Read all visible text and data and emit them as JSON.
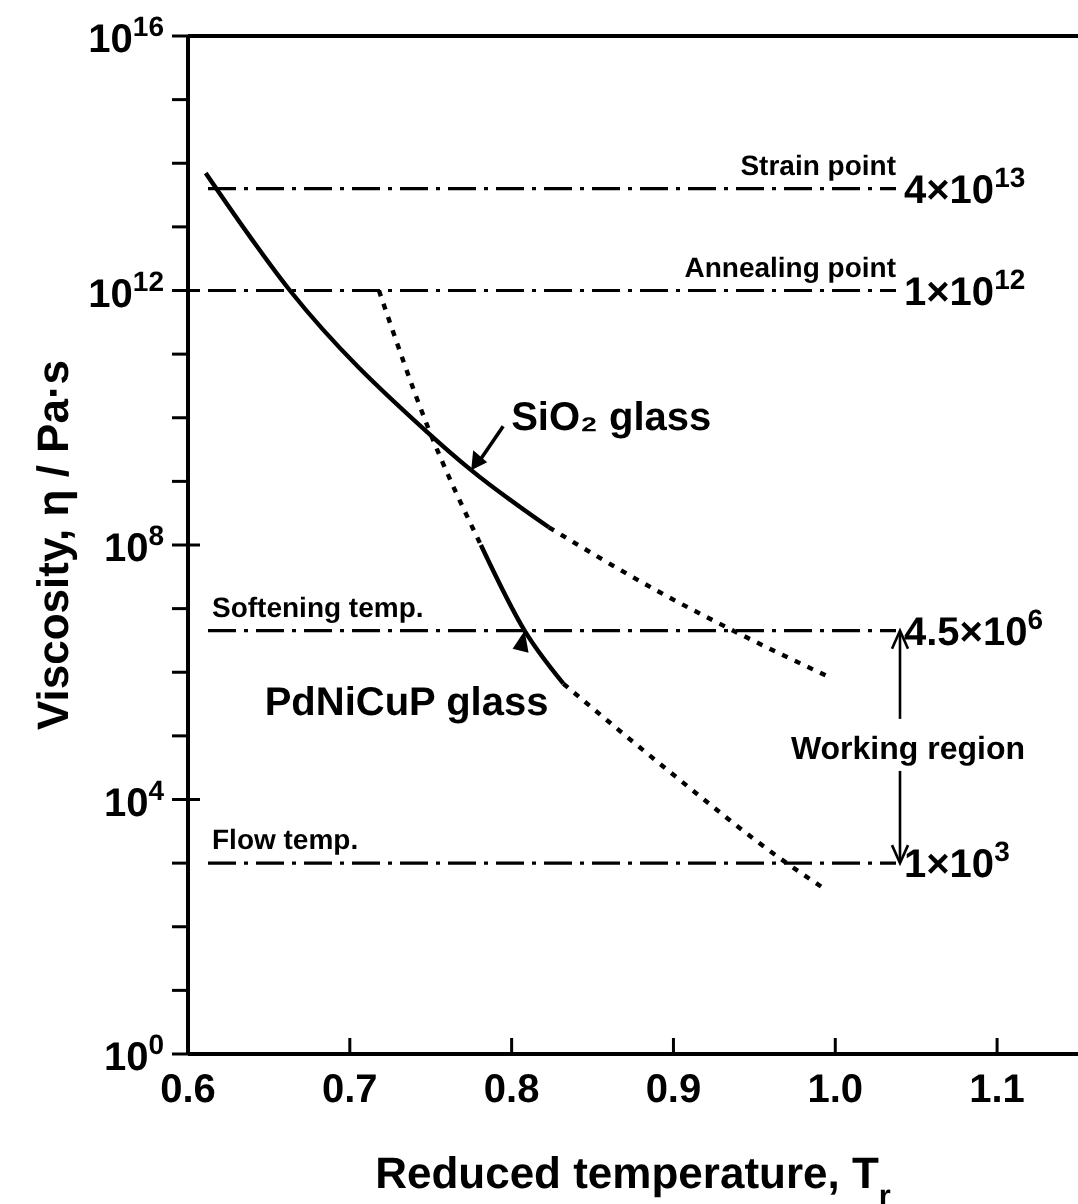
{
  "chart_data": {
    "type": "line",
    "xlabel": "Reduced temperature, T$_{r}$",
    "ylabel": "Viscosity, η / Pa·s",
    "log": "y",
    "xlim": [
      0.6,
      1.15
    ],
    "xticks": [
      {
        "value": 0.6,
        "label": "0.6"
      },
      {
        "value": 0.7,
        "label": "0.7"
      },
      {
        "value": 0.8,
        "label": "0.8"
      },
      {
        "value": 0.9,
        "label": "0.9"
      },
      {
        "value": 1.0,
        "label": "1.0"
      },
      {
        "value": 1.1,
        "label": "1.1"
      }
    ],
    "ylim": [
      1,
      1e+16
    ],
    "yticks": [
      {
        "value": 1,
        "label": "10$^{0}$"
      },
      {
        "value": 10,
        "label": null
      },
      {
        "value": 100,
        "label": null
      },
      {
        "value": 1000,
        "label": null
      },
      {
        "value": 10000.0,
        "label": "10$^{4}$"
      },
      {
        "value": 100000.0,
        "label": null
      },
      {
        "value": 1000000.0,
        "label": null
      },
      {
        "value": 10000000.0,
        "label": null
      },
      {
        "value": 100000000.0,
        "label": "10$^{8}$"
      },
      {
        "value": 1000000000.0,
        "label": null
      },
      {
        "value": 10000000000.0,
        "label": null
      },
      {
        "value": 100000000000.0,
        "label": null
      },
      {
        "value": 1000000000000.0,
        "label": "10$^{12}$"
      },
      {
        "value": 10000000000000.0,
        "label": null
      },
      {
        "value": 100000000000000.0,
        "label": null
      },
      {
        "value": 1000000000000000.0,
        "label": null
      },
      {
        "value": 1e+16,
        "label": "10$^{16}$"
      }
    ],
    "grid": false,
    "marker": "none",
    "series": [
      {
        "color": "#000000",
        "line_style": "solid",
        "x": [
          0.611,
          0.663,
          0.748,
          0.775,
          0.823
        ],
        "values": [
          70000000000000.0,
          1000000000000.0,
          5900000000.0,
          1500000000.0,
          190000000.0
        ]
      },
      {
        "color": "#000000",
        "line_style": "dotted",
        "x": [
          0.823,
          0.89,
          0.937,
          0.998
        ],
        "values": [
          190000000.0,
          19000000.0,
          4500000.0,
          800000.0
        ]
      },
      {
        "color": "#000000",
        "line_style": "dotted",
        "x": [
          0.718,
          0.748,
          0.781
        ],
        "values": [
          1000000000000.0,
          7400000000.0,
          100000000.0
        ]
      },
      {
        "color": "#000000",
        "line_style": "solid",
        "x": [
          0.781,
          0.808,
          0.832
        ],
        "values": [
          100000000.0,
          4500000.0,
          660000.0
        ]
      },
      {
        "color": "#000000",
        "line_style": "dotted",
        "x": [
          0.832,
          0.895,
          0.97,
          0.993
        ],
        "values": [
          660000.0,
          31000.0,
          1000.0,
          400.0
        ]
      }
    ],
    "ref_lines": [
      {
        "axis": "y",
        "value": 40000000000000.0,
        "label": "Strain point",
        "line_style": "dashed"
      },
      {
        "axis": "y",
        "value": 1000000000000.0,
        "label": "Annealing point",
        "line_style": "dashed"
      },
      {
        "axis": "y",
        "value": 4500000.0,
        "label": "Softening temp.",
        "line_style": "dashed"
      },
      {
        "axis": "y",
        "value": 1000.0,
        "label": "Flow temp.",
        "line_style": "dashed"
      }
    ],
    "annotations": [
      {
        "text": "4×10$^{13}$",
        "x": 1.04,
        "y": 40000000000000.0
      },
      {
        "text": "1×10$^{12}$",
        "x": 1.04,
        "y": 1000000000000.0
      },
      {
        "text": "4.5×10$^{6}$",
        "x": 1.04,
        "y": 4500000.0
      },
      {
        "text": "1×10$^{3}$",
        "x": 1.04,
        "y": 1000.0
      },
      {
        "text": "SiO₂ glass",
        "x": 0.775,
        "y": 1500000000.0
      },
      {
        "text": "PdNiCuP glass",
        "x": 0.808,
        "y": 4500000.0
      },
      {
        "text": "Working region",
        "x": 1.04,
        "y": 4500000.0
      }
    ]
  }
}
